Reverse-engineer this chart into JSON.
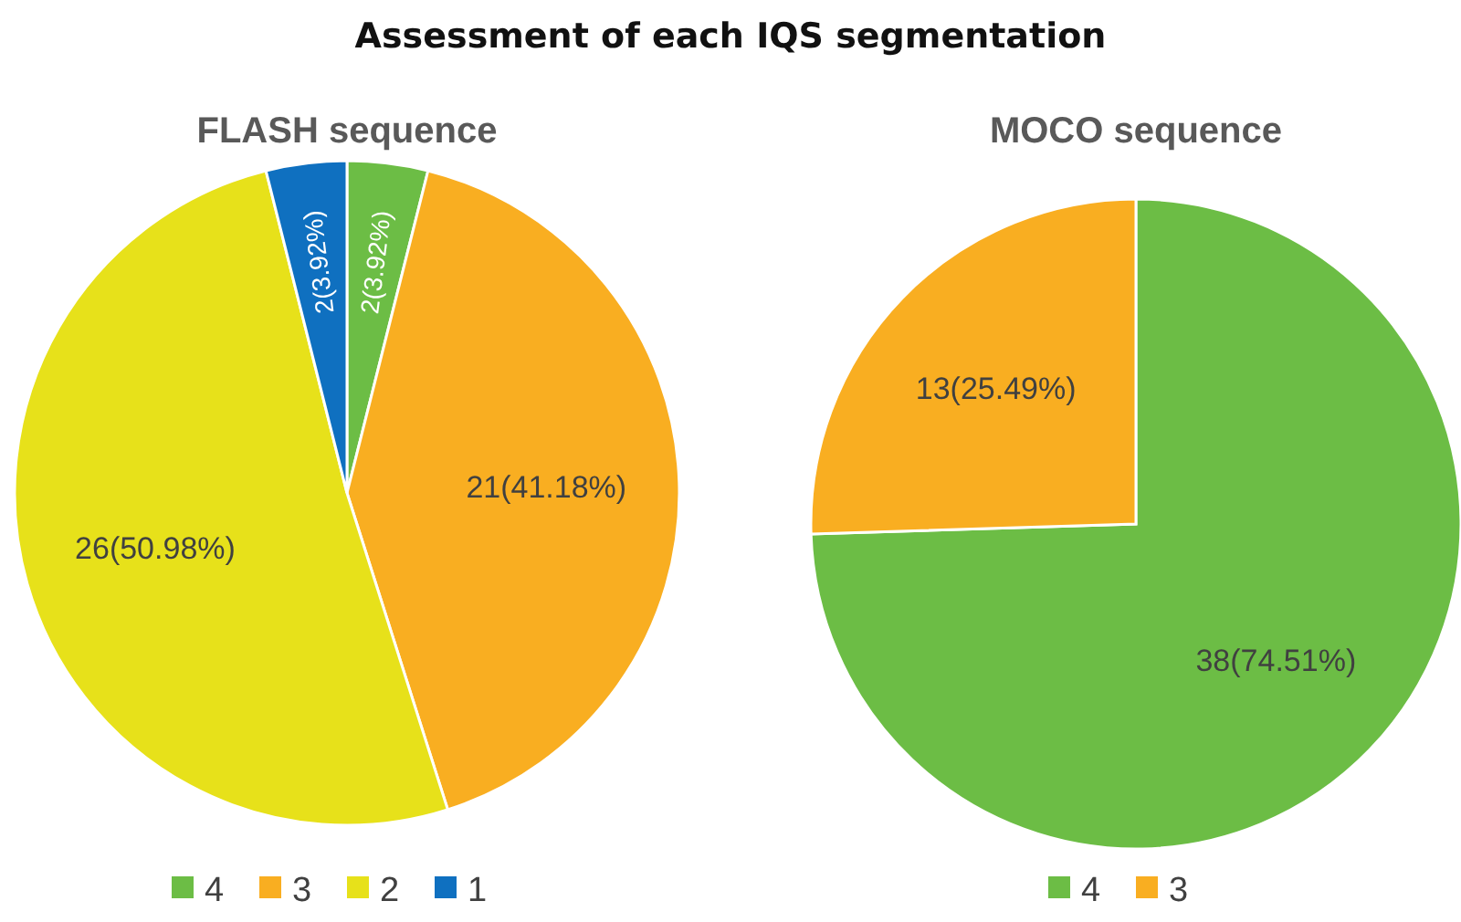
{
  "chart_data": [
    {
      "type": "pie",
      "title": "FLASH sequence",
      "annotations": [
        "Assessment of each IQS segmentation"
      ],
      "categories": [
        "4",
        "3",
        "2",
        "1"
      ],
      "values": [
        2,
        21,
        26,
        2
      ],
      "colors": [
        "#6cbd45",
        "#f9ae21",
        "#e7e11a",
        "#0f70c0"
      ],
      "value_labels": [
        "2(3.92%)",
        "21(41.18%)",
        "26(50.98%)",
        "2(3.92%)"
      ],
      "legend": "bottom"
    },
    {
      "type": "pie",
      "title": "MOCO sequence",
      "categories": [
        "4",
        "3"
      ],
      "values": [
        38,
        13
      ],
      "colors": [
        "#6cbd45",
        "#f9ae21"
      ],
      "value_labels": [
        "38(74.51%)",
        "13(25.49%)"
      ],
      "legend": "bottom"
    }
  ]
}
